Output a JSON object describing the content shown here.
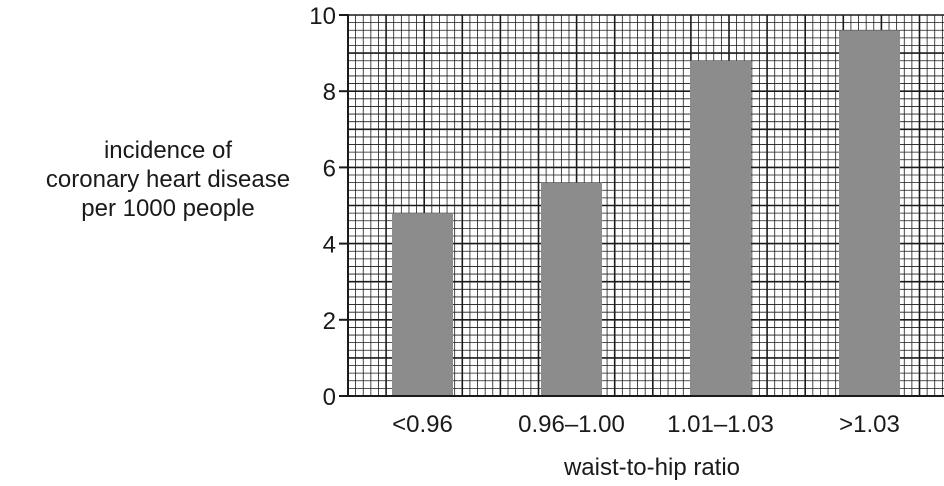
{
  "chart_data": {
    "type": "bar",
    "title": "",
    "xlabel": "waist-to-hip ratio",
    "ylabel_lines": [
      "incidence of",
      "coronary heart disease",
      "per 1000 people"
    ],
    "categories": [
      "<0.96",
      "0.96–1.00",
      "1.01–1.03",
      ">1.03"
    ],
    "values": [
      4.8,
      5.6,
      8.8,
      9.6
    ],
    "ylim": [
      0,
      10
    ],
    "yticks": [
      "0",
      "2",
      "4",
      "6",
      "8",
      "10"
    ],
    "grid": true,
    "grid_minor_step": 0.2,
    "bar_color": "#8c8c8c",
    "grid_color": "#1a1a1a"
  }
}
